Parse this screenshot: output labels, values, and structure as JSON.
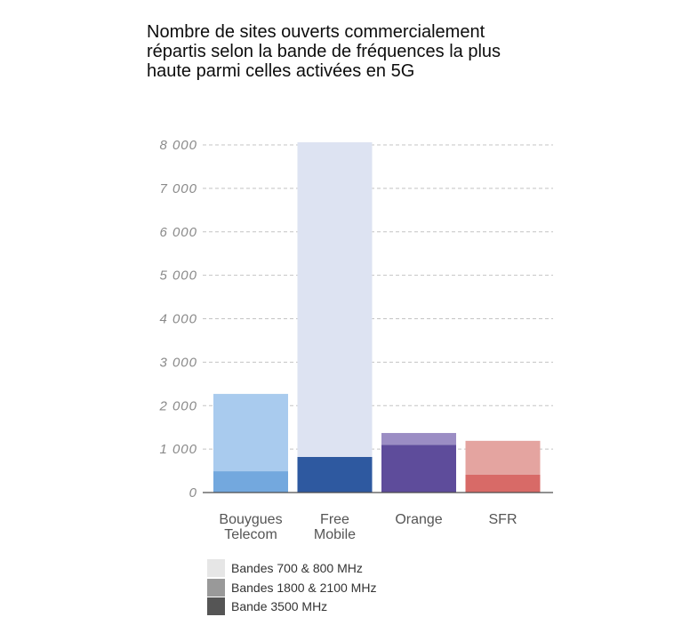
{
  "chart_data": {
    "type": "bar",
    "stacked": true,
    "title": "Nombre de sites ouverts commercialement répartis selon la bande de fréquences la plus haute parmi celles activées en 5G",
    "xlabel": "",
    "ylabel": "",
    "categories": [
      "Bouygues Telecom",
      "Free Mobile",
      "Orange",
      "SFR"
    ],
    "series": [
      {
        "name": "Bandes 700 & 800 MHz",
        "legend_color": "#e6e6e6",
        "values": [
          0,
          7240,
          0,
          0
        ],
        "colors": [
          null,
          "#dde3f2",
          null,
          null
        ]
      },
      {
        "name": "Bandes 1800 & 2100 MHz",
        "legend_color": "#999999",
        "values": [
          1780,
          0,
          270,
          780
        ],
        "colors": [
          "#a9cbee",
          null,
          "#9b8dc4",
          "#e4a4a0"
        ]
      },
      {
        "name": "Bande 3500 MHz",
        "legend_color": "#555555",
        "values": [
          490,
          820,
          1100,
          410
        ],
        "colors": [
          "#73a8de",
          "#2e59a0",
          "#5e4c9b",
          "#d86a67"
        ]
      }
    ],
    "ylim": [
      0,
      8000
    ],
    "yticks": [
      0,
      1000,
      2000,
      3000,
      4000,
      5000,
      6000,
      7000,
      8000
    ],
    "ytick_labels": [
      "0",
      "1 000",
      "2 000",
      "3 000",
      "4 000",
      "5 000",
      "6 000",
      "7 000",
      "8 000"
    ],
    "grid": "horizontal dashed",
    "legend": "bottom-left"
  }
}
